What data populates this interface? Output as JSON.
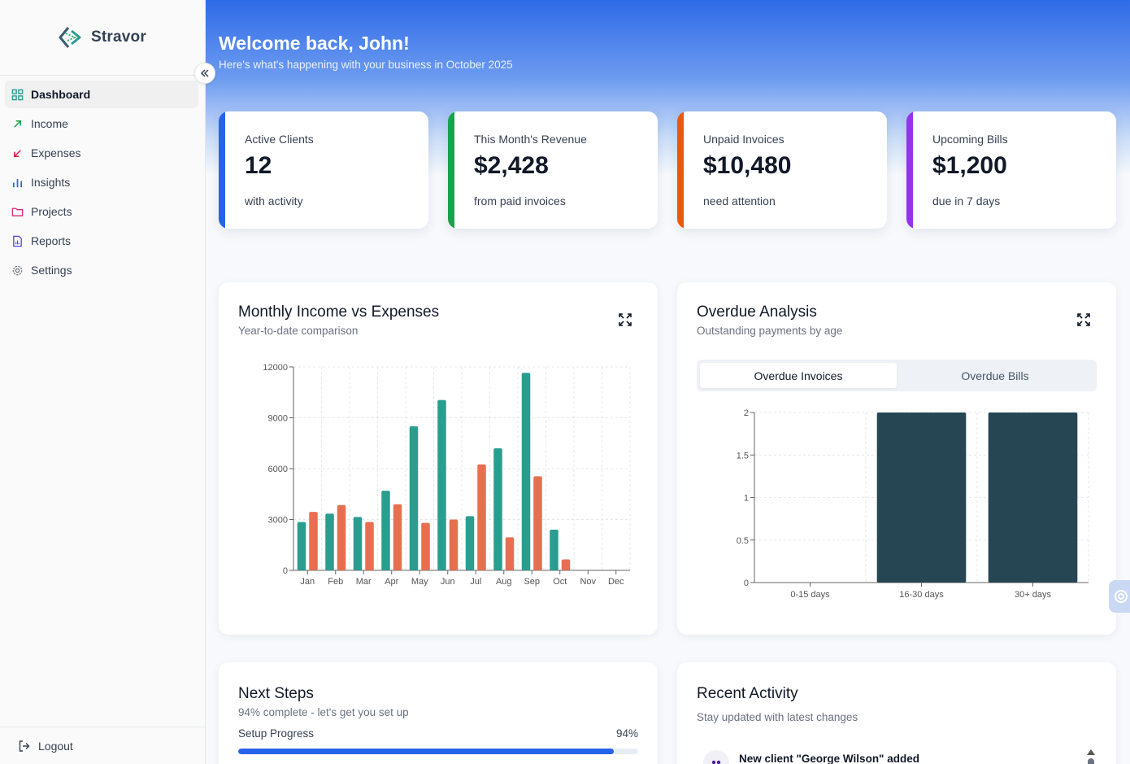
{
  "app": {
    "name": "Stravor"
  },
  "sidebar": {
    "items": [
      {
        "label": "Dashboard",
        "icon": "grid-icon",
        "active": true
      },
      {
        "label": "Income",
        "icon": "arrow-up-right-icon"
      },
      {
        "label": "Expenses",
        "icon": "arrow-down-left-icon"
      },
      {
        "label": "Insights",
        "icon": "bar-chart-icon"
      },
      {
        "label": "Projects",
        "icon": "folder-icon"
      },
      {
        "label": "Reports",
        "icon": "report-icon"
      },
      {
        "label": "Settings",
        "icon": "gear-icon"
      }
    ],
    "logout_label": "Logout"
  },
  "header": {
    "title": "Welcome back, John!",
    "subtitle": "Here's what's happening with your business in October 2025"
  },
  "stats": [
    {
      "label": "Active Clients",
      "value": "12",
      "note": "with activity",
      "color": "#2563eb"
    },
    {
      "label": "This Month's Revenue",
      "value": "$2,428",
      "note": "from paid invoices",
      "color": "#16a34a"
    },
    {
      "label": "Unpaid Invoices",
      "value": "$10,480",
      "note": "need attention",
      "color": "#ea580c"
    },
    {
      "label": "Upcoming Bills",
      "value": "$1,200",
      "note": "due in 7 days",
      "color": "#9333ea"
    }
  ],
  "income_chart": {
    "title": "Monthly Income vs Expenses",
    "subtitle": "Year-to-date comparison"
  },
  "overdue": {
    "title": "Overdue Analysis",
    "subtitle": "Outstanding payments by age",
    "tabs": [
      "Overdue Invoices",
      "Overdue Bills"
    ]
  },
  "next_steps": {
    "title": "Next Steps",
    "subtitle": "94% complete - let's get you set up",
    "progress_label": "Setup Progress",
    "progress_value": "94%",
    "progress": 0.94
  },
  "recent_activity": {
    "title": "Recent Activity",
    "subtitle": "Stay updated with latest changes",
    "items": [
      "New client \"George Wilson\" added"
    ]
  },
  "chart_data": [
    {
      "type": "bar",
      "categories": [
        "Jan",
        "Feb",
        "Mar",
        "Apr",
        "May",
        "Jun",
        "Jul",
        "Aug",
        "Sep",
        "Oct",
        "Nov",
        "Dec"
      ],
      "series": [
        {
          "values": [
            2850,
            3350,
            3150,
            4700,
            8500,
            10050,
            3200,
            7200,
            11650,
            2400,
            0,
            0
          ],
          "color": "#2a9d8f"
        },
        {
          "values": [
            3450,
            3850,
            2850,
            3900,
            2800,
            3000,
            6250,
            1950,
            5550,
            650,
            0,
            0
          ],
          "color": "#e76f51"
        }
      ],
      "ylim": [
        0,
        12000
      ],
      "yticks": [
        "0",
        "3000",
        "6000",
        "9000",
        "12000"
      ],
      "grid": true
    },
    {
      "type": "bar",
      "categories": [
        "0-15 days",
        "16-30 days",
        "30+ days"
      ],
      "values": [
        0,
        2,
        2
      ],
      "color": "#264653",
      "ylim": [
        0,
        2
      ],
      "yticks": [
        "0",
        "0.5",
        "1",
        "1.5",
        "2"
      ],
      "grid": true
    }
  ]
}
